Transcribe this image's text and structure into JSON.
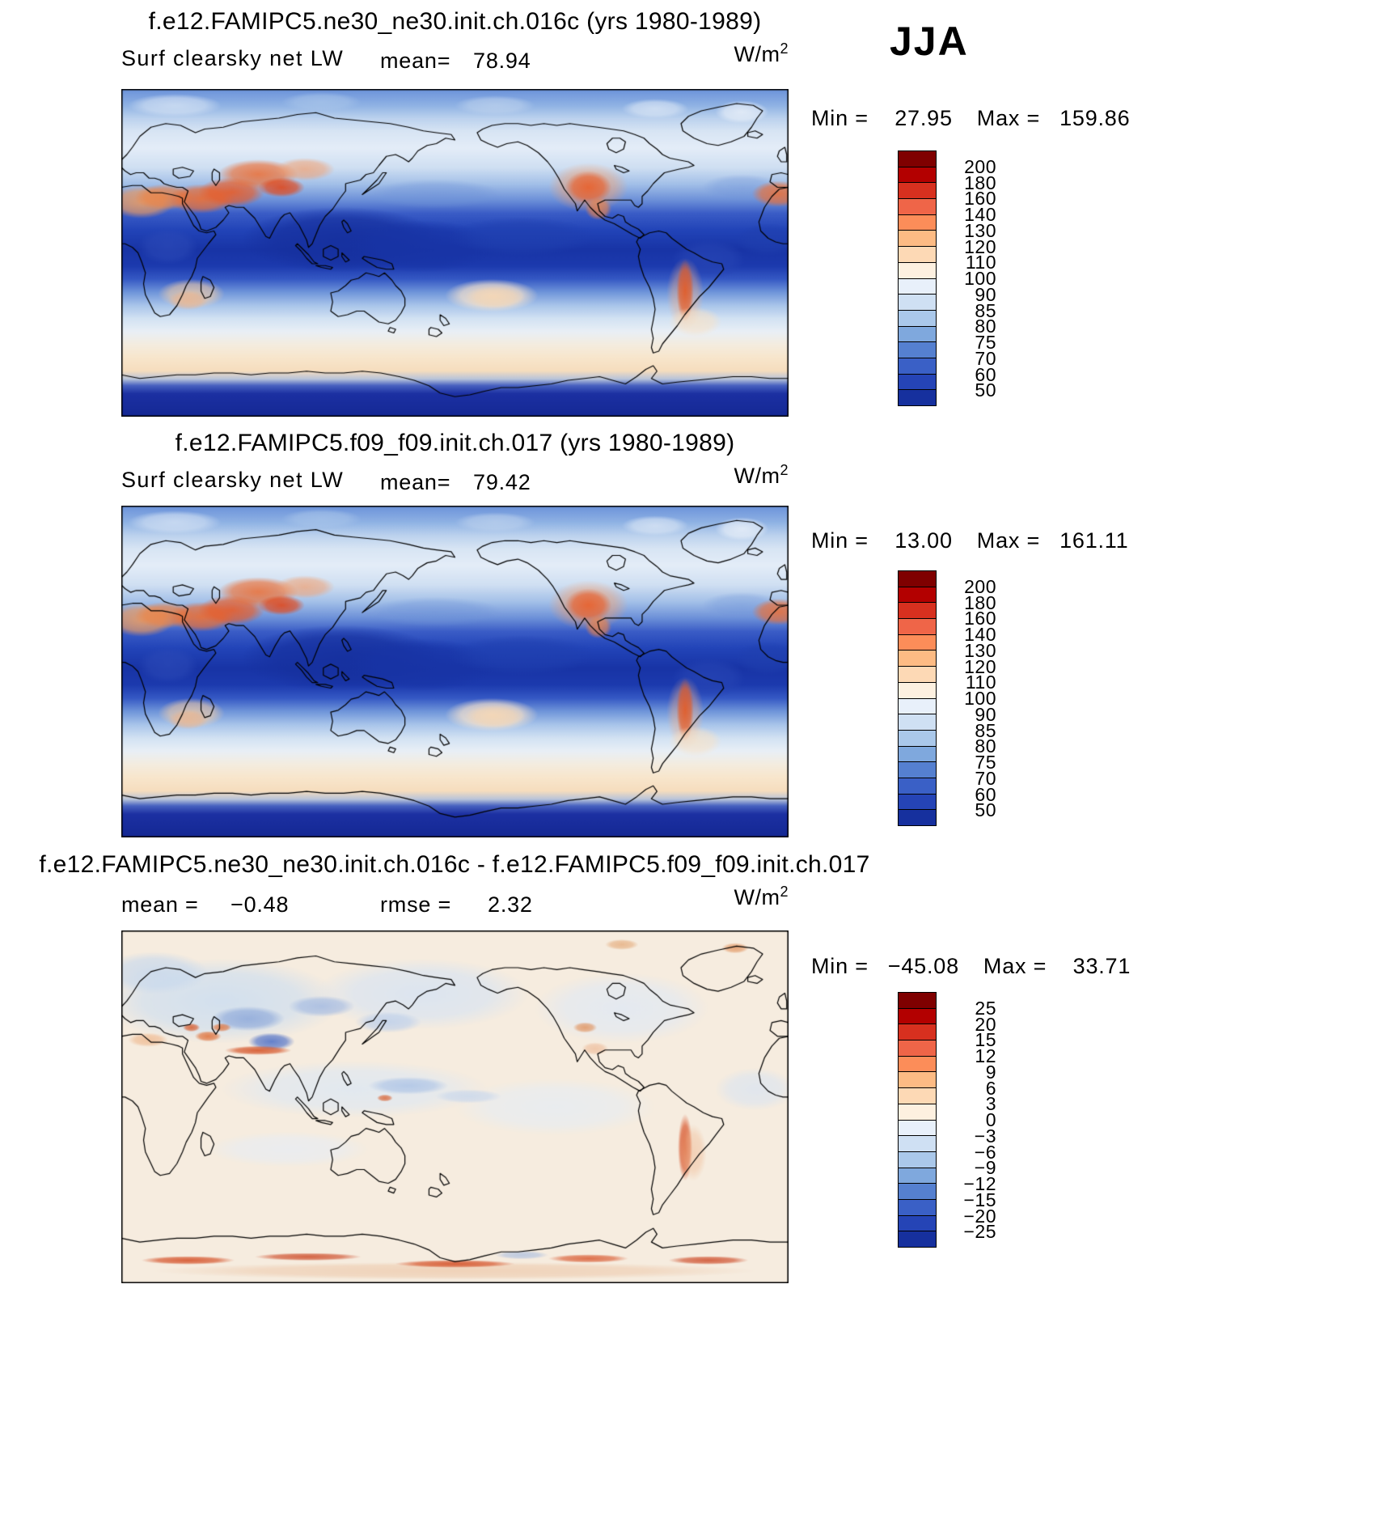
{
  "season": "JJA",
  "palette": [
    "#7f0000",
    "#b30000",
    "#d7301f",
    "#ef6548",
    "#fc8d59",
    "#fdbb84",
    "#fdd9b5",
    "#fdf0e0",
    "#e8f0fa",
    "#cfe0f3",
    "#aac8ea",
    "#7fa8dd",
    "#5580d0",
    "#3a60c6",
    "#2544b6",
    "#16309e"
  ],
  "panels": [
    {
      "id": "model1",
      "title": "f.e12.FAMIPC5.ne30_ne30.init.ch.016c (yrs 1980-1989)",
      "var_label": "Surf clearsky net LW",
      "mean_label": "mean=",
      "mean": "78.94",
      "units_base": "W/m",
      "units_exp": "2",
      "min_label": "Min =",
      "min": "27.95",
      "max_label": "Max =",
      "max": "159.86",
      "colorbar_labels": [
        "200",
        "180",
        "160",
        "140",
        "130",
        "120",
        "110",
        "100",
        "90",
        "85",
        "80",
        "75",
        "70",
        "60",
        "50"
      ]
    },
    {
      "id": "model2",
      "title": "f.e12.FAMIPC5.f09_f09.init.ch.017 (yrs 1980-1989)",
      "var_label": "Surf clearsky net LW",
      "mean_label": "mean=",
      "mean": "79.42",
      "units_base": "W/m",
      "units_exp": "2",
      "min_label": "Min =",
      "min": "13.00",
      "max_label": "Max =",
      "max": "161.11",
      "colorbar_labels": [
        "200",
        "180",
        "160",
        "140",
        "130",
        "120",
        "110",
        "100",
        "90",
        "85",
        "80",
        "75",
        "70",
        "60",
        "50"
      ]
    },
    {
      "id": "difference",
      "title": "f.e12.FAMIPC5.ne30_ne30.init.ch.016c - f.e12.FAMIPC5.f09_f09.init.ch.017",
      "mean_label": "mean =",
      "mean": "−0.48",
      "rmse_label": "rmse =",
      "rmse": "2.32",
      "units_base": "W/m",
      "units_exp": "2",
      "min_label": "Min =",
      "min": "−45.08",
      "max_label": "Max =",
      "max": "33.71",
      "colorbar_labels": [
        "25",
        "20",
        "15",
        "12",
        "9",
        "6",
        "3",
        "0",
        "−3",
        "−6",
        "−9",
        "−12",
        "−15",
        "−20",
        "−25"
      ]
    }
  ],
  "chart_data": [
    {
      "type": "heatmap",
      "panel": "model_1",
      "title": "f.e12.FAMIPC5.ne30_ne30.init.ch.016c (yrs 1980-1989)",
      "variable": "Surf clearsky net LW",
      "season": "JJA",
      "units": "W/m2",
      "mean": 78.94,
      "min": 27.95,
      "max": 159.86,
      "contour_levels": [
        50,
        60,
        70,
        75,
        80,
        85,
        90,
        100,
        110,
        120,
        130,
        140,
        160,
        180,
        200
      ],
      "colormap": "blue-red diverging, 16 bins",
      "legend_position": "right"
    },
    {
      "type": "heatmap",
      "panel": "model_2",
      "title": "f.e12.FAMIPC5.f09_f09.init.ch.017 (yrs 1980-1989)",
      "variable": "Surf clearsky net LW",
      "season": "JJA",
      "units": "W/m2",
      "mean": 79.42,
      "min": 13.0,
      "max": 161.11,
      "contour_levels": [
        50,
        60,
        70,
        75,
        80,
        85,
        90,
        100,
        110,
        120,
        130,
        140,
        160,
        180,
        200
      ],
      "colormap": "blue-red diverging, 16 bins",
      "legend_position": "right"
    },
    {
      "type": "heatmap",
      "panel": "difference_model1_minus_model2",
      "title": "f.e12.FAMIPC5.ne30_ne30.init.ch.016c - f.e12.FAMIPC5.f09_f09.init.ch.017",
      "variable": "Surf clearsky net LW difference",
      "season": "JJA",
      "units": "W/m2",
      "mean": -0.48,
      "rmse": 2.32,
      "min": -45.08,
      "max": 33.71,
      "contour_levels": [
        -25,
        -20,
        -15,
        -12,
        -9,
        -6,
        -3,
        0,
        3,
        6,
        9,
        12,
        15,
        20,
        25
      ],
      "colormap": "blue-red diverging, 16 bins",
      "legend_position": "right"
    }
  ]
}
